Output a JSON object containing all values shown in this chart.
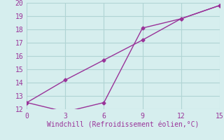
{
  "line1_x": [
    0,
    3,
    6,
    9,
    12,
    15
  ],
  "line1_y": [
    12.5,
    11.8,
    12.5,
    18.1,
    18.8,
    19.8
  ],
  "line2_x": [
    0,
    3,
    6,
    9,
    12,
    15
  ],
  "line2_y": [
    12.5,
    14.2,
    15.7,
    17.2,
    18.8,
    19.8
  ],
  "color": "#993399",
  "bg_color": "#d6eeee",
  "grid_color": "#b0d4d4",
  "xlabel": "Windchill (Refroidissement éolien,°C)",
  "xlim": [
    0,
    15
  ],
  "ylim": [
    12,
    20
  ],
  "xticks": [
    0,
    3,
    6,
    9,
    12,
    15
  ],
  "yticks": [
    12,
    13,
    14,
    15,
    16,
    17,
    18,
    19,
    20
  ],
  "xlabel_fontsize": 7,
  "tick_fontsize": 7,
  "marker": "D",
  "marker_size": 2.5,
  "linewidth": 1.0
}
